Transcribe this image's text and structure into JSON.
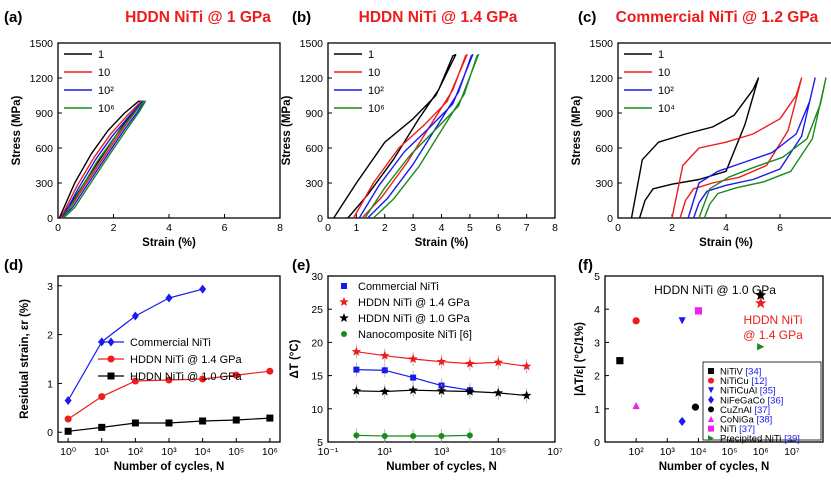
{
  "chart_data": [
    {
      "panel": "(a)",
      "type": "line",
      "title": "HDDN NiTi @ 1 GPa",
      "xlabel": "Strain (%)",
      "ylabel": "Stress (MPa)",
      "xlim": [
        0,
        8
      ],
      "ylim": [
        0,
        1500
      ],
      "xticks": [
        "0",
        "2",
        "4",
        "6",
        "8"
      ],
      "yticks": [
        "0",
        "300",
        "600",
        "900",
        "1200",
        "1500"
      ],
      "legend": {
        "position": "top-left",
        "entries": [
          "1",
          "10",
          "10²",
          "10⁶"
        ]
      },
      "series": [
        {
          "name": "1",
          "color": "#000000",
          "x": [
            0.05,
            0.6,
            1.2,
            1.8,
            2.4,
            2.9,
            3.0,
            2.8,
            2.3,
            1.7,
            1.0,
            0.45,
            0.05
          ],
          "y": [
            0,
            300,
            550,
            750,
            900,
            1000,
            1000,
            930,
            780,
            570,
            320,
            120,
            0
          ]
        },
        {
          "name": "10",
          "color": "#ee1c1c",
          "x": [
            0.1,
            0.7,
            1.3,
            1.9,
            2.5,
            3.0,
            3.05,
            2.85,
            2.35,
            1.75,
            1.05,
            0.5,
            0.1
          ],
          "y": [
            0,
            280,
            520,
            720,
            880,
            1000,
            1000,
            930,
            770,
            560,
            310,
            110,
            0
          ]
        },
        {
          "name": "10²",
          "color": "#1a1aee",
          "x": [
            0.15,
            0.75,
            1.35,
            1.95,
            2.55,
            3.05,
            3.1,
            2.9,
            2.4,
            1.8,
            1.1,
            0.55,
            0.15
          ],
          "y": [
            0,
            260,
            500,
            700,
            870,
            1000,
            1000,
            920,
            760,
            550,
            300,
            100,
            0
          ]
        },
        {
          "name": "10⁶",
          "color": "#1a8a1a",
          "x": [
            0.2,
            0.8,
            1.4,
            2.0,
            2.6,
            3.1,
            3.15,
            2.95,
            2.45,
            1.85,
            1.15,
            0.6,
            0.2
          ],
          "y": [
            0,
            240,
            480,
            680,
            860,
            1000,
            1000,
            920,
            750,
            540,
            290,
            90,
            0
          ]
        }
      ]
    },
    {
      "panel": "(b)",
      "type": "line",
      "title": "HDDN NiTi @ 1.4 GPa",
      "xlabel": "Strain (%)",
      "ylabel": "Stress (MPa)",
      "xlim": [
        0,
        8
      ],
      "ylim": [
        0,
        1500
      ],
      "xticks": [
        "0",
        "1",
        "2",
        "3",
        "4",
        "5",
        "6",
        "7",
        "8"
      ],
      "yticks": [
        "0",
        "300",
        "600",
        "900",
        "1200",
        "1500"
      ],
      "legend": {
        "position": "top-left",
        "entries": [
          "1",
          "10",
          "10²",
          "10⁶"
        ]
      },
      "series": [
        {
          "name": "1",
          "color": "#000000",
          "x": [
            0.2,
            1.0,
            2.0,
            3.0,
            3.8,
            4.5,
            4.4,
            3.9,
            3.2,
            2.3,
            1.4,
            0.7
          ],
          "y": [
            0,
            300,
            650,
            850,
            1050,
            1400,
            1390,
            1100,
            850,
            500,
            200,
            0
          ]
        },
        {
          "name": "10",
          "color": "#ee1c1c",
          "x": [
            0.9,
            1.6,
            2.5,
            3.4,
            4.2,
            4.9,
            4.85,
            4.4,
            3.7,
            2.8,
            1.9,
            1.2
          ],
          "y": [
            0,
            300,
            600,
            800,
            1000,
            1400,
            1390,
            1100,
            830,
            480,
            180,
            0
          ]
        },
        {
          "name": "10²",
          "color": "#1a1aee",
          "x": [
            1.1,
            1.8,
            2.7,
            3.6,
            4.4,
            5.1,
            5.05,
            4.6,
            3.9,
            3.0,
            2.1,
            1.4
          ],
          "y": [
            0,
            280,
            570,
            780,
            980,
            1400,
            1390,
            1080,
            810,
            460,
            170,
            0
          ]
        },
        {
          "name": "10⁶",
          "color": "#1a8a1a",
          "x": [
            1.3,
            2.0,
            2.9,
            3.8,
            4.6,
            5.3,
            5.25,
            4.8,
            4.1,
            3.2,
            2.3,
            1.6
          ],
          "y": [
            0,
            260,
            540,
            760,
            960,
            1400,
            1390,
            1060,
            790,
            440,
            160,
            0
          ]
        }
      ]
    },
    {
      "panel": "(c)",
      "type": "line",
      "title": "Commercial NiTi @ 1.2 GPa",
      "xlabel": "Strain (%)",
      "ylabel": "Stress (MPa)",
      "xlim": [
        0,
        8
      ],
      "ylim": [
        0,
        1500
      ],
      "xticks": [
        "0",
        "2",
        "4",
        "6",
        "8"
      ],
      "yticks": [
        "0",
        "300",
        "600",
        "900",
        "1200",
        "1500"
      ],
      "legend": {
        "position": "top-left",
        "entries": [
          "1",
          "10",
          "10²",
          "10⁴"
        ]
      },
      "series": [
        {
          "name": "1",
          "color": "#000000",
          "x": [
            0.5,
            0.9,
            1.5,
            2.5,
            3.5,
            4.3,
            5.0,
            5.2,
            4.7,
            4.0,
            3.0,
            2.0,
            1.3,
            1.0,
            0.8
          ],
          "y": [
            0,
            500,
            650,
            720,
            780,
            880,
            1100,
            1200,
            800,
            400,
            330,
            290,
            250,
            150,
            0
          ]
        },
        {
          "name": "10",
          "color": "#ee1c1c",
          "x": [
            2.0,
            2.4,
            3.0,
            4.0,
            5.0,
            6.0,
            6.6,
            6.8,
            6.3,
            5.5,
            4.5,
            3.5,
            2.8,
            2.5,
            2.3
          ],
          "y": [
            0,
            450,
            600,
            650,
            720,
            850,
            1050,
            1200,
            750,
            450,
            350,
            300,
            250,
            150,
            0
          ]
        },
        {
          "name": "10²",
          "color": "#1a1aee",
          "x": [
            2.6,
            3.0,
            3.7,
            4.7,
            5.7,
            6.6,
            7.1,
            7.3,
            6.8,
            6.0,
            5.0,
            4.0,
            3.3,
            3.0,
            2.8
          ],
          "y": [
            0,
            300,
            400,
            480,
            560,
            720,
            1000,
            1200,
            700,
            420,
            330,
            280,
            230,
            130,
            0
          ]
        },
        {
          "name": "10⁴",
          "color": "#1a8a1a",
          "x": [
            3.0,
            3.4,
            4.1,
            5.1,
            6.1,
            7.0,
            7.5,
            7.7,
            7.2,
            6.4,
            5.4,
            4.4,
            3.7,
            3.4,
            3.2
          ],
          "y": [
            0,
            250,
            350,
            440,
            520,
            680,
            980,
            1200,
            680,
            400,
            310,
            260,
            210,
            120,
            0
          ]
        }
      ]
    },
    {
      "panel": "(d)",
      "type": "line",
      "title": "",
      "xlabel": "Number of cycles, N",
      "ylabel": "Residual strain, εr (%)",
      "xscale": "log",
      "xlim": [
        0.5,
        2000000
      ],
      "ylim": [
        -0.2,
        3.2
      ],
      "xticks": [
        "10⁰",
        "10¹",
        "10²",
        "10³",
        "10⁴",
        "10⁵",
        "10⁶"
      ],
      "yticks": [
        "0",
        "1",
        "2",
        "3"
      ],
      "legend": {
        "position": "center-right",
        "entries": [
          "Commercial NiTi",
          "HDDN NiTi @ 1.4 GPa",
          "HDDN NiTi @ 1.0 GPa"
        ]
      },
      "series": [
        {
          "name": "Commercial NiTi",
          "color": "#1a1aee",
          "marker": "diamond",
          "x": [
            1,
            10,
            100,
            1000,
            10000
          ],
          "y": [
            0.65,
            1.85,
            2.38,
            2.75,
            2.93
          ]
        },
        {
          "name": "HDDN NiTi @ 1.4 GPa",
          "color": "#ee1c1c",
          "marker": "circle",
          "x": [
            1,
            10,
            100,
            1000,
            10000,
            100000,
            1000000
          ],
          "y": [
            0.27,
            0.73,
            1.05,
            1.07,
            1.09,
            1.17,
            1.25
          ]
        },
        {
          "name": "HDDN NiTi @ 1.0 GPa",
          "color": "#000000",
          "marker": "square",
          "x": [
            1,
            10,
            100,
            1000,
            10000,
            100000,
            1000000
          ],
          "y": [
            0.02,
            0.1,
            0.19,
            0.19,
            0.23,
            0.25,
            0.29
          ]
        }
      ]
    },
    {
      "panel": "(e)",
      "type": "line",
      "title": "",
      "xlabel": "Number of cycles, N",
      "ylabel": "ΔT (°C)",
      "xscale": "log",
      "xlim": [
        0.1,
        10000000
      ],
      "ylim": [
        5,
        30
      ],
      "xticks": [
        "10⁻¹",
        "10¹",
        "10³",
        "10⁵",
        "10⁷"
      ],
      "yticks": [
        "5",
        "10",
        "15",
        "20",
        "25",
        "30"
      ],
      "legend": {
        "position": "top-left",
        "entries": [
          "Commercial NiTi",
          "HDDN NiTi @ 1.4 GPa",
          "HDDN NiTi @ 1.0 GPa",
          "Nanocomposite NiTi [6]"
        ]
      },
      "series": [
        {
          "name": "Commercial NiTi",
          "color": "#1a1aee",
          "marker": "square",
          "x": [
            1,
            10,
            100,
            1000,
            10000
          ],
          "y": [
            15.9,
            15.8,
            14.7,
            13.5,
            12.8
          ]
        },
        {
          "name": "HDDN NiTi @ 1.4 GPa",
          "color": "#ee1c1c",
          "marker": "star",
          "x": [
            1,
            10,
            100,
            1000,
            10000,
            100000,
            1000000
          ],
          "y": [
            18.6,
            18.0,
            17.5,
            17.1,
            16.8,
            17.0,
            16.4
          ]
        },
        {
          "name": "HDDN NiTi @ 1.0 GPa",
          "color": "#000000",
          "marker": "star",
          "x": [
            1,
            10,
            100,
            1000,
            10000,
            100000,
            1000000
          ],
          "y": [
            12.7,
            12.6,
            12.8,
            12.7,
            12.6,
            12.4,
            12.0
          ]
        },
        {
          "name": "Nanocomposite NiTi [6]",
          "color": "#1a8a1a",
          "marker": "circle",
          "x": [
            1,
            10,
            100,
            1000,
            10000
          ],
          "y": [
            6.0,
            5.9,
            5.9,
            5.9,
            6.0
          ]
        }
      ]
    },
    {
      "panel": "(f)",
      "type": "scatter",
      "title": "",
      "xlabel": "Number of cycles, N",
      "ylabel": "|ΔT/ε| (°C/1%)",
      "xscale": "log",
      "xlim": [
        10,
        100000000
      ],
      "ylim": [
        0,
        5
      ],
      "xticks": [
        "10²",
        "10³",
        "10⁴",
        "10⁵",
        "10⁶",
        "10⁷"
      ],
      "yticks": [
        "0",
        "1",
        "2",
        "3",
        "4",
        "5"
      ],
      "annotations": [
        "HDDN NiTi @ 1.0 GPa",
        "HDDN NiTi",
        "@ 1.4 GPa"
      ],
      "legend": {
        "position": "bottom-right",
        "entries": [
          {
            "label": "NiTiV",
            "ref": "[34]",
            "marker": "square",
            "color": "#000000"
          },
          {
            "label": "NiTiCu",
            "ref": "[12]",
            "marker": "circle",
            "color": "#ee1c1c"
          },
          {
            "label": "NiTiCuAl",
            "ref": "[35]",
            "marker": "triangle-down",
            "color": "#1a1aee"
          },
          {
            "label": "NiFeGaCo",
            "ref": "[36]",
            "marker": "diamond",
            "color": "#1a1aee"
          },
          {
            "label": "CuZnAl",
            "ref": "[37]",
            "marker": "circle",
            "color": "#000000"
          },
          {
            "label": "CoNiGa",
            "ref": "[38]",
            "marker": "triangle-up",
            "color": "#ee22ee"
          },
          {
            "label": "NiTi",
            "ref": "[37]",
            "marker": "square",
            "color": "#ee22ee"
          },
          {
            "label": "Precipited NiTi",
            "ref": "[39]",
            "marker": "triangle-right",
            "color": "#1a8a1a"
          }
        ]
      },
      "points": [
        {
          "label": "NiTiV",
          "marker": "square",
          "color": "#000000",
          "x": 30,
          "y": 2.45
        },
        {
          "label": "NiTiCu",
          "marker": "circle",
          "color": "#ee1c1c",
          "x": 100,
          "y": 3.65
        },
        {
          "label": "NiTiCuAl",
          "marker": "triangle-down",
          "color": "#1a1aee",
          "x": 3000,
          "y": 3.65
        },
        {
          "label": "NiFeGaCo",
          "marker": "diamond",
          "color": "#1a1aee",
          "x": 3000,
          "y": 0.62
        },
        {
          "label": "CuZnAl",
          "marker": "circle",
          "color": "#000000",
          "x": 8000,
          "y": 1.05
        },
        {
          "label": "CoNiGa",
          "marker": "triangle-up",
          "color": "#ee22ee",
          "x": 100,
          "y": 1.1
        },
        {
          "label": "NiTi",
          "marker": "square",
          "color": "#ee22ee",
          "x": 10000,
          "y": 3.95
        },
        {
          "label": "Precipited NiTi",
          "marker": "triangle-right",
          "color": "#1a8a1a",
          "x": 1000000,
          "y": 2.87
        },
        {
          "label": "HDDN NiTi @ 1.0 GPa",
          "marker": "star",
          "color": "#000000",
          "x": 1000000,
          "y": 4.42
        },
        {
          "label": "HDDN NiTi @ 1.4 GPa",
          "marker": "star",
          "color": "#ee1c1c",
          "x": 1000000,
          "y": 4.18
        }
      ]
    }
  ]
}
